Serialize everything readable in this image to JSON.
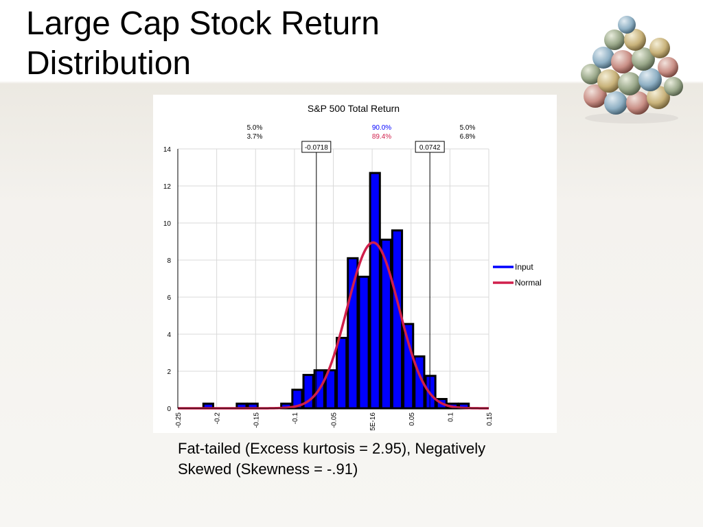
{
  "slide": {
    "title_line1": "Large Cap Stock Return",
    "title_line2": "Distribution",
    "caption_line1": "Fat-tailed (Excess kurtosis = 2.95), Negatively",
    "caption_line2": "Skewed (Skewness = -.91)"
  },
  "decoration": {
    "icon": "money-balls-pyramid"
  },
  "colors": {
    "input": "#0000ff",
    "normal": "#d01f4b",
    "bar_outline": "#000000",
    "grid": "#d9d9d9"
  },
  "chart_data": {
    "type": "bar",
    "title": "S&P 500 Total Return",
    "xlabel": "",
    "ylabel": "",
    "xlim": [
      -0.25,
      0.15
    ],
    "ylim": [
      0,
      14
    ],
    "y_ticks": [
      "0",
      "2",
      "4",
      "6",
      "8",
      "10",
      "12",
      "14"
    ],
    "x_ticks": [
      "-0.25",
      "-0.2",
      "-0.15",
      "-0.1",
      "-0.05",
      "5E-16",
      "0.05",
      "0.1",
      "0.15"
    ],
    "bin_width": 0.0143,
    "series": [
      {
        "name": "Input",
        "type": "bar",
        "bins": [
          {
            "x": -0.2108,
            "y": 0.25
          },
          {
            "x": -0.1679,
            "y": 0.25
          },
          {
            "x": -0.1536,
            "y": 0.25
          },
          {
            "x": -0.1107,
            "y": 0.25
          },
          {
            "x": -0.0964,
            "y": 1.0
          },
          {
            "x": -0.0821,
            "y": 1.8
          },
          {
            "x": -0.0679,
            "y": 2.05
          },
          {
            "x": -0.0536,
            "y": 2.05
          },
          {
            "x": -0.0393,
            "y": 3.8
          },
          {
            "x": -0.025,
            "y": 8.1
          },
          {
            "x": -0.0107,
            "y": 7.1
          },
          {
            "x": 0.0036,
            "y": 12.7
          },
          {
            "x": 0.0179,
            "y": 9.1
          },
          {
            "x": 0.0321,
            "y": 9.6
          },
          {
            "x": 0.0464,
            "y": 4.55
          },
          {
            "x": 0.0607,
            "y": 2.8
          },
          {
            "x": 0.075,
            "y": 1.75
          },
          {
            "x": 0.0893,
            "y": 0.5
          },
          {
            "x": 0.1036,
            "y": 0.25
          },
          {
            "x": 0.1179,
            "y": 0.25
          }
        ]
      },
      {
        "name": "Normal",
        "type": "line",
        "mean": 0.0012,
        "peak": 8.95,
        "stdev": 0.0333
      }
    ],
    "markers": [
      {
        "label": "-0.0718",
        "x": -0.0718
      },
      {
        "label": "0.0742",
        "x": 0.0742
      }
    ],
    "region_labels": [
      {
        "input": "5.0%",
        "normal": "3.7%"
      },
      {
        "input": "90.0%",
        "normal": "89.4%"
      },
      {
        "input": "5.0%",
        "normal": "6.8%"
      }
    ],
    "grid": true,
    "legend_position": "right"
  }
}
